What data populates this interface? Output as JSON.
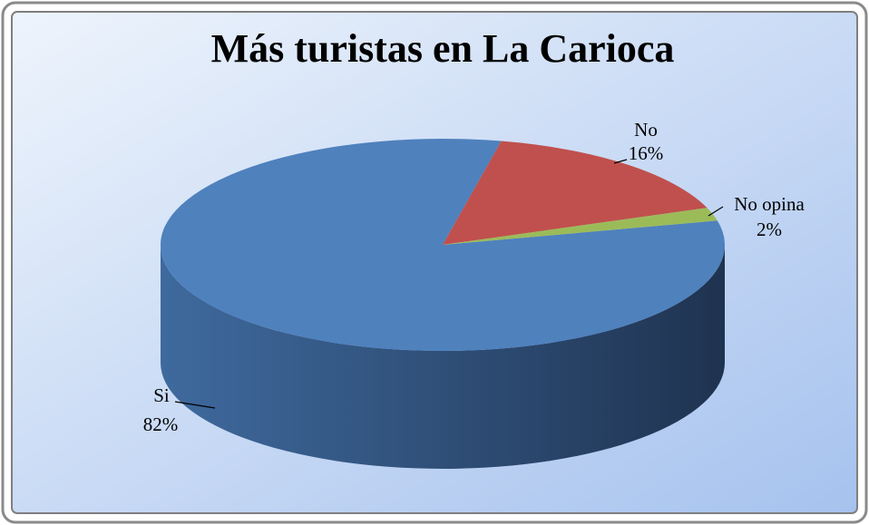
{
  "chart_data": {
    "type": "pie3d",
    "title": "Más turistas en La Carioca",
    "categories": [
      "Si",
      "No",
      "No opina"
    ],
    "values": [
      82,
      16,
      2
    ],
    "value_labels": [
      "82%",
      "16%",
      "2%"
    ],
    "colors": [
      "#4f81bd",
      "#c0504d",
      "#9bbb59"
    ]
  }
}
